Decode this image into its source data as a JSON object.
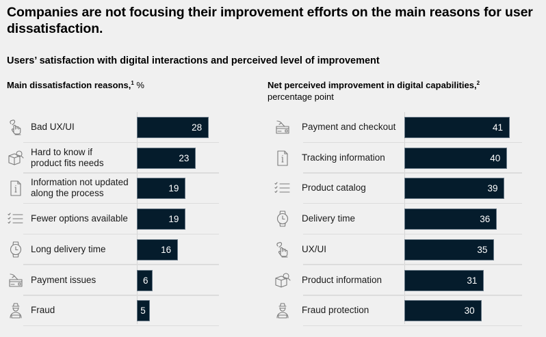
{
  "title": "Companies are not focusing their improvement efforts on the main reasons for user dissatisfaction.",
  "subtitle": "Users’ satisfaction with digital interactions and perceived level of improvement",
  "colors": {
    "bar": "#051c2c",
    "background": "#f0f0f0",
    "separator": "#dcdcdc",
    "icon": "#777777"
  },
  "chart_data": [
    {
      "type": "bar",
      "orientation": "horizontal",
      "title": "Main dissatisfaction reasons,",
      "title_footnote": "1",
      "unit": "%",
      "categories": [
        "Bad UX/UI",
        "Hard to know if product fits needs",
        "Information not updated along the process",
        "Fewer options available",
        "Long delivery time",
        "Payment issues",
        "Fraud"
      ],
      "category_lines": [
        [
          "Bad UX/UI"
        ],
        [
          "Hard to know if",
          "product fits needs"
        ],
        [
          "Information not updated",
          "along the process"
        ],
        [
          "Fewer options available"
        ],
        [
          "Long delivery time"
        ],
        [
          "Payment issues"
        ],
        [
          "Fraud"
        ]
      ],
      "icons": [
        "hand-pointer-heart-icon",
        "box-search-icon",
        "info-document-icon",
        "checklist-icon",
        "watch-icon",
        "payment-card-icon",
        "fraudster-icon"
      ],
      "values": [
        28,
        23,
        19,
        19,
        16,
        6,
        5
      ],
      "data_labels": [
        "28",
        "23",
        "19",
        "19",
        "16",
        "6",
        "5"
      ],
      "xlim": [
        0,
        41
      ],
      "grid": false,
      "legend": "none"
    },
    {
      "type": "bar",
      "orientation": "horizontal",
      "title": "Net perceived improvement in digital capabilities,",
      "title_footnote": "2",
      "unit": "percentage point",
      "categories": [
        "Payment and checkout",
        "Tracking information",
        "Product catalog",
        "Delivery time",
        "UX/UI",
        "Product information",
        "Fraud protection"
      ],
      "category_lines": [
        [
          "Payment and checkout"
        ],
        [
          "Tracking information"
        ],
        [
          "Product catalog"
        ],
        [
          "Delivery time"
        ],
        [
          "UX/UI"
        ],
        [
          "Product information"
        ],
        [
          "Fraud protection"
        ]
      ],
      "icons": [
        "payment-card-icon",
        "info-document-icon",
        "checklist-icon",
        "watch-icon",
        "hand-pointer-heart-icon",
        "box-search-icon",
        "fraudster-icon"
      ],
      "values": [
        41,
        40,
        39,
        36,
        35,
        31,
        30
      ],
      "data_labels": [
        "41",
        "40",
        "39",
        "36",
        "35",
        "31",
        "30"
      ],
      "xlim": [
        0,
        41
      ],
      "grid": false,
      "legend": "none"
    }
  ]
}
